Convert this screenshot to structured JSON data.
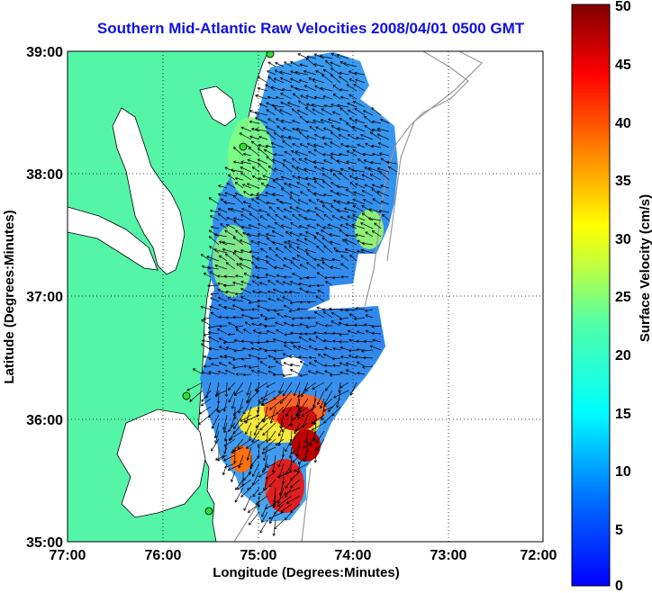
{
  "title": "Southern Mid-Atlantic Raw Velocities 2008/04/01 0500 GMT",
  "x_axis": {
    "label": "Longitude (Degrees:Minutes)",
    "ticks": [
      "77:00",
      "76:00",
      "75:00",
      "74:00",
      "73:00",
      "72:00"
    ]
  },
  "y_axis": {
    "label": "Latitude (Degrees:Minutes)",
    "ticks": [
      "39:00",
      "38:00",
      "37:00",
      "36:00",
      "35:00"
    ]
  },
  "colorbar": {
    "label": "Surface Velocity (cm/s)",
    "ticks": [
      "50",
      "45",
      "40",
      "35",
      "30",
      "25",
      "20",
      "15",
      "10",
      "5",
      "0"
    ],
    "min": 0,
    "max": 50,
    "colormap": "jet"
  },
  "colors": {
    "title": "#1010e6",
    "land": "#55f5a8",
    "station_marker": "#33dd33"
  },
  "map_extent": {
    "lon_min": -77,
    "lon_max": -72,
    "lat_min": 35,
    "lat_max": 39
  },
  "grid": true
}
